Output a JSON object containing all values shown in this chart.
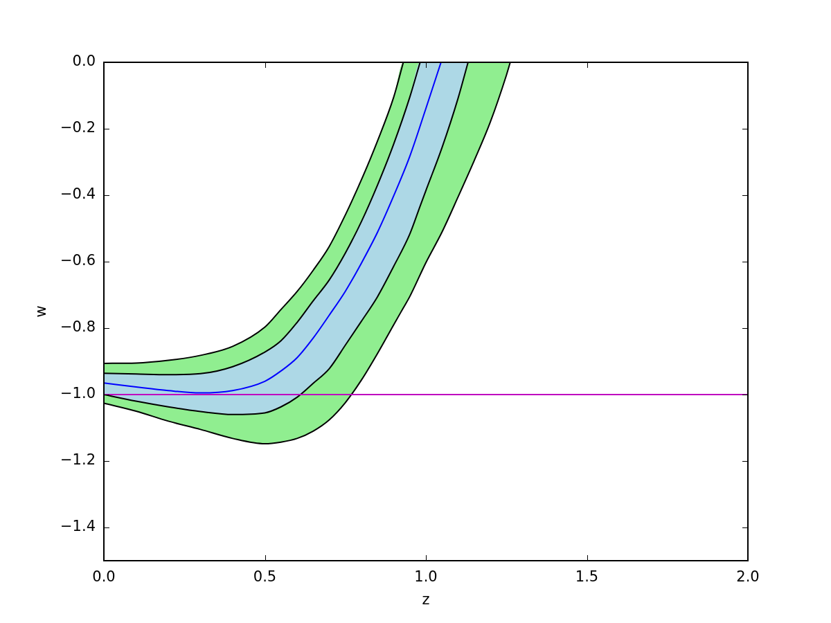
{
  "chart_data": {
    "type": "line",
    "xlabel": "z",
    "ylabel": "w",
    "xlim": [
      0,
      2
    ],
    "xticks": [
      {
        "value": 0,
        "label": "0.0"
      },
      {
        "value": 0.5,
        "label": "0.5"
      },
      {
        "value": 1,
        "label": "1.0"
      },
      {
        "value": 1.5,
        "label": "1.5"
      },
      {
        "value": 2,
        "label": "2.0"
      }
    ],
    "ylim": [
      -1.5,
      0
    ],
    "yticks": [
      {
        "value": -1.4,
        "label": "−1.4"
      },
      {
        "value": -1.2,
        "label": "−1.2"
      },
      {
        "value": -1,
        "label": "−1.0"
      },
      {
        "value": -0.8,
        "label": "−0.8"
      },
      {
        "value": -0.6,
        "label": "−0.6"
      },
      {
        "value": -0.4,
        "label": "−0.4"
      },
      {
        "value": -0.2,
        "label": "−0.2"
      },
      {
        "value": 0,
        "label": "0.0"
      }
    ],
    "series": [
      {
        "type": "line",
        "color": "#90ee90",
        "x": [
          0,
          0.1,
          0.2,
          0.3,
          0.4,
          0.5,
          0.55,
          0.6,
          0.65,
          0.7,
          0.75,
          0.8,
          0.85,
          0.9,
          0.93,
          0.95,
          1.0,
          1.05,
          1.1,
          1.15,
          1.2,
          1.25,
          1.262
        ],
        "values": [
          null,
          null,
          null,
          null,
          null,
          null,
          null,
          null,
          null,
          null,
          null,
          null,
          null,
          null,
          null,
          null,
          null,
          null,
          null,
          null,
          null,
          null,
          null
        ],
        "upper": [
          -0.906,
          -0.905,
          -0.897,
          -0.882,
          -0.855,
          -0.797,
          -0.744,
          -0.69,
          -0.626,
          -0.554,
          -0.459,
          -0.353,
          -0.236,
          -0.105,
          0,
          0,
          0,
          0,
          0,
          0,
          0,
          0,
          0
        ],
        "lower": [
          -1.026,
          -1.05,
          -1.08,
          -1.105,
          -1.132,
          -1.148,
          -1.143,
          -1.132,
          -1.11,
          -1.076,
          -1.024,
          -0.956,
          -0.876,
          -0.79,
          -0.739,
          -0.705,
          -0.603,
          -0.511,
          -0.405,
          -0.296,
          -0.18,
          -0.039,
          0
        ]
      },
      {
        "type": "line",
        "color": "#add8e6",
        "x": [
          0,
          0.1,
          0.2,
          0.3,
          0.4,
          0.5,
          0.55,
          0.6,
          0.65,
          0.7,
          0.75,
          0.8,
          0.85,
          0.9,
          0.95,
          0.982,
          1.0,
          1.05,
          1.1,
          1.131
        ],
        "values": [
          null,
          null,
          null,
          null,
          null,
          null,
          null,
          null,
          null,
          null,
          null,
          null,
          null,
          null,
          null,
          null,
          null,
          null,
          null,
          null
        ],
        "upper": [
          -0.936,
          -0.938,
          -0.94,
          -0.937,
          -0.916,
          -0.872,
          -0.838,
          -0.783,
          -0.718,
          -0.655,
          -0.574,
          -0.479,
          -0.369,
          -0.246,
          -0.105,
          0,
          0,
          0,
          0,
          0
        ],
        "lower": [
          -1.0,
          -1.02,
          -1.037,
          -1.051,
          -1.06,
          -1.055,
          -1.037,
          -1.008,
          -0.966,
          -0.922,
          -0.851,
          -0.779,
          -0.705,
          -0.614,
          -0.517,
          -0.433,
          -0.386,
          -0.257,
          -0.108,
          0
        ]
      },
      {
        "type": "line",
        "color": "#000000",
        "x": [
          0,
          0.1,
          0.2,
          0.3,
          0.4,
          0.5,
          0.55,
          0.6,
          0.65,
          0.7,
          0.75,
          0.8,
          0.85,
          0.9,
          0.93
        ],
        "values": [
          -0.906,
          -0.905,
          -0.897,
          -0.882,
          -0.855,
          -0.797,
          -0.744,
          -0.69,
          -0.626,
          -0.554,
          -0.459,
          -0.353,
          -0.236,
          -0.105,
          0
        ]
      },
      {
        "type": "line",
        "color": "#000000",
        "x": [
          0,
          0.1,
          0.2,
          0.3,
          0.4,
          0.5,
          0.55,
          0.6,
          0.65,
          0.7,
          0.75,
          0.8,
          0.85,
          0.9,
          0.93,
          0.95,
          1.0,
          1.05,
          1.1,
          1.15,
          1.2,
          1.25,
          1.262
        ],
        "values": [
          -1.026,
          -1.05,
          -1.08,
          -1.105,
          -1.132,
          -1.148,
          -1.143,
          -1.132,
          -1.11,
          -1.076,
          -1.024,
          -0.956,
          -0.876,
          -0.79,
          -0.739,
          -0.705,
          -0.603,
          -0.511,
          -0.405,
          -0.296,
          -0.18,
          -0.039,
          0
        ]
      },
      {
        "type": "line",
        "color": "#000000",
        "x": [
          0,
          0.1,
          0.2,
          0.3,
          0.4,
          0.5,
          0.55,
          0.6,
          0.65,
          0.7,
          0.75,
          0.8,
          0.85,
          0.9,
          0.95,
          0.982
        ],
        "values": [
          -0.936,
          -0.938,
          -0.94,
          -0.937,
          -0.916,
          -0.872,
          -0.838,
          -0.783,
          -0.718,
          -0.655,
          -0.574,
          -0.479,
          -0.369,
          -0.246,
          -0.105,
          0
        ]
      },
      {
        "type": "line",
        "color": "#000000",
        "x": [
          0,
          0.1,
          0.2,
          0.3,
          0.4,
          0.5,
          0.55,
          0.6,
          0.65,
          0.7,
          0.75,
          0.8,
          0.85,
          0.9,
          0.95,
          0.982,
          1.0,
          1.05,
          1.1,
          1.131
        ],
        "values": [
          -1.0,
          -1.02,
          -1.037,
          -1.051,
          -1.06,
          -1.055,
          -1.037,
          -1.008,
          -0.966,
          -0.922,
          -0.851,
          -0.779,
          -0.705,
          -0.614,
          -0.517,
          -0.433,
          -0.386,
          -0.257,
          -0.108,
          0
        ]
      },
      {
        "type": "line",
        "color": "#0000ff",
        "x": [
          0,
          0.1,
          0.2,
          0.3,
          0.4,
          0.5,
          0.55,
          0.6,
          0.65,
          0.7,
          0.75,
          0.8,
          0.85,
          0.9,
          0.95,
          1.0,
          1.047
        ],
        "values": [
          -0.965,
          -0.977,
          -0.988,
          -0.995,
          -0.988,
          -0.96,
          -0.929,
          -0.889,
          -0.83,
          -0.761,
          -0.689,
          -0.604,
          -0.511,
          -0.402,
          -0.283,
          -0.139,
          0
        ]
      }
    ],
    "ref_lines": [
      {
        "axis": "y",
        "value": -1,
        "color": "#bf00bf"
      }
    ]
  }
}
